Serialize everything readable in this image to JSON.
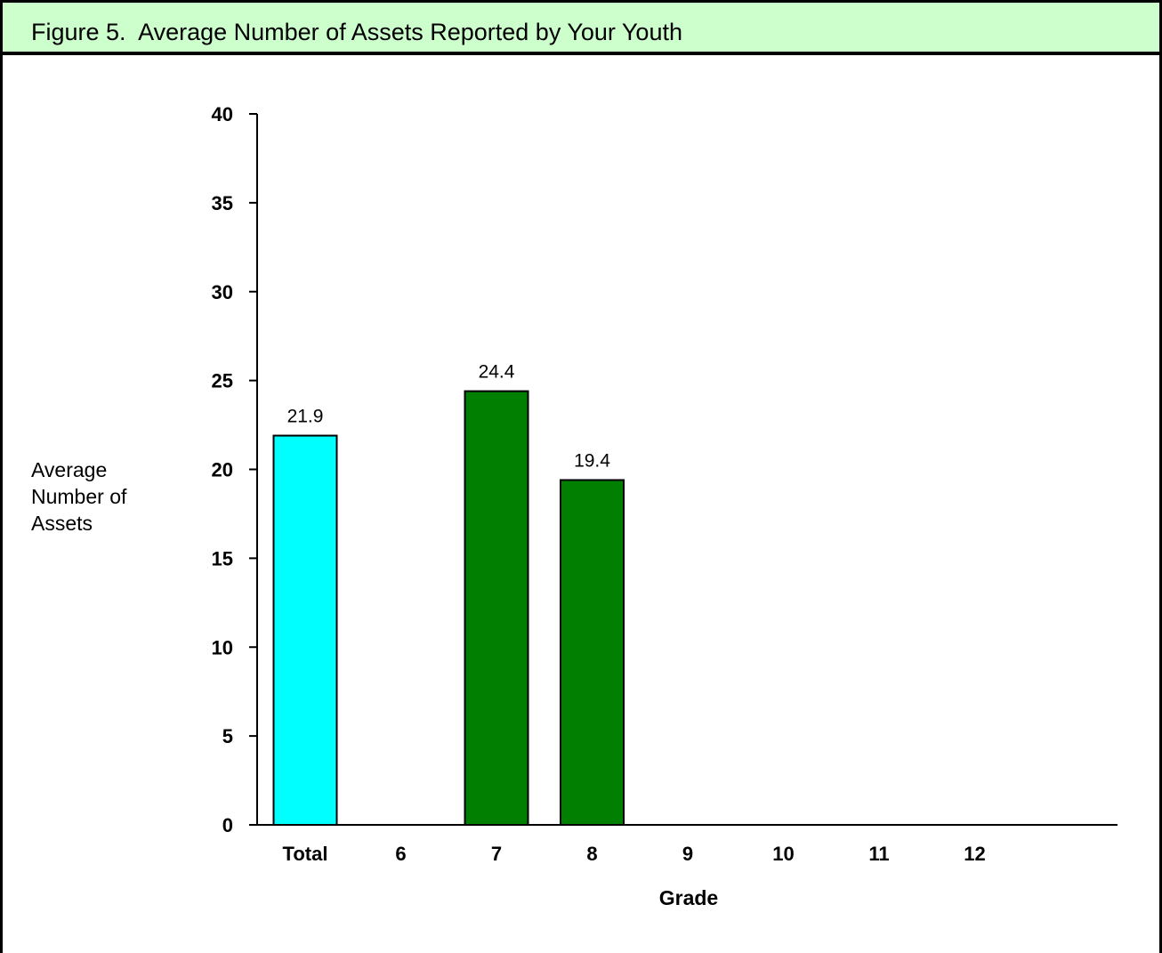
{
  "header": {
    "title": "Figure 5.  Average Number of Assets Reported by Your Youth"
  },
  "chart_data": {
    "type": "bar",
    "title": "",
    "xlabel": "Grade",
    "ylabel": "Average\nNumber of\nAssets",
    "categories": [
      "Total",
      "6",
      "7",
      "8",
      "9",
      "10",
      "11",
      "12"
    ],
    "values": [
      21.9,
      null,
      24.4,
      19.4,
      null,
      null,
      null,
      null
    ],
    "data_labels": [
      "21.9",
      "",
      "24.4",
      "19.4",
      "",
      "",
      "",
      ""
    ],
    "bar_colors": [
      "#00ffff",
      "#007f00",
      "#007f00",
      "#007f00",
      "#007f00",
      "#007f00",
      "#007f00",
      "#007f00"
    ],
    "ylim": [
      0,
      40
    ],
    "yticks": [
      0,
      5,
      10,
      15,
      20,
      25,
      30,
      35,
      40
    ],
    "grid": false,
    "legend": "none"
  }
}
